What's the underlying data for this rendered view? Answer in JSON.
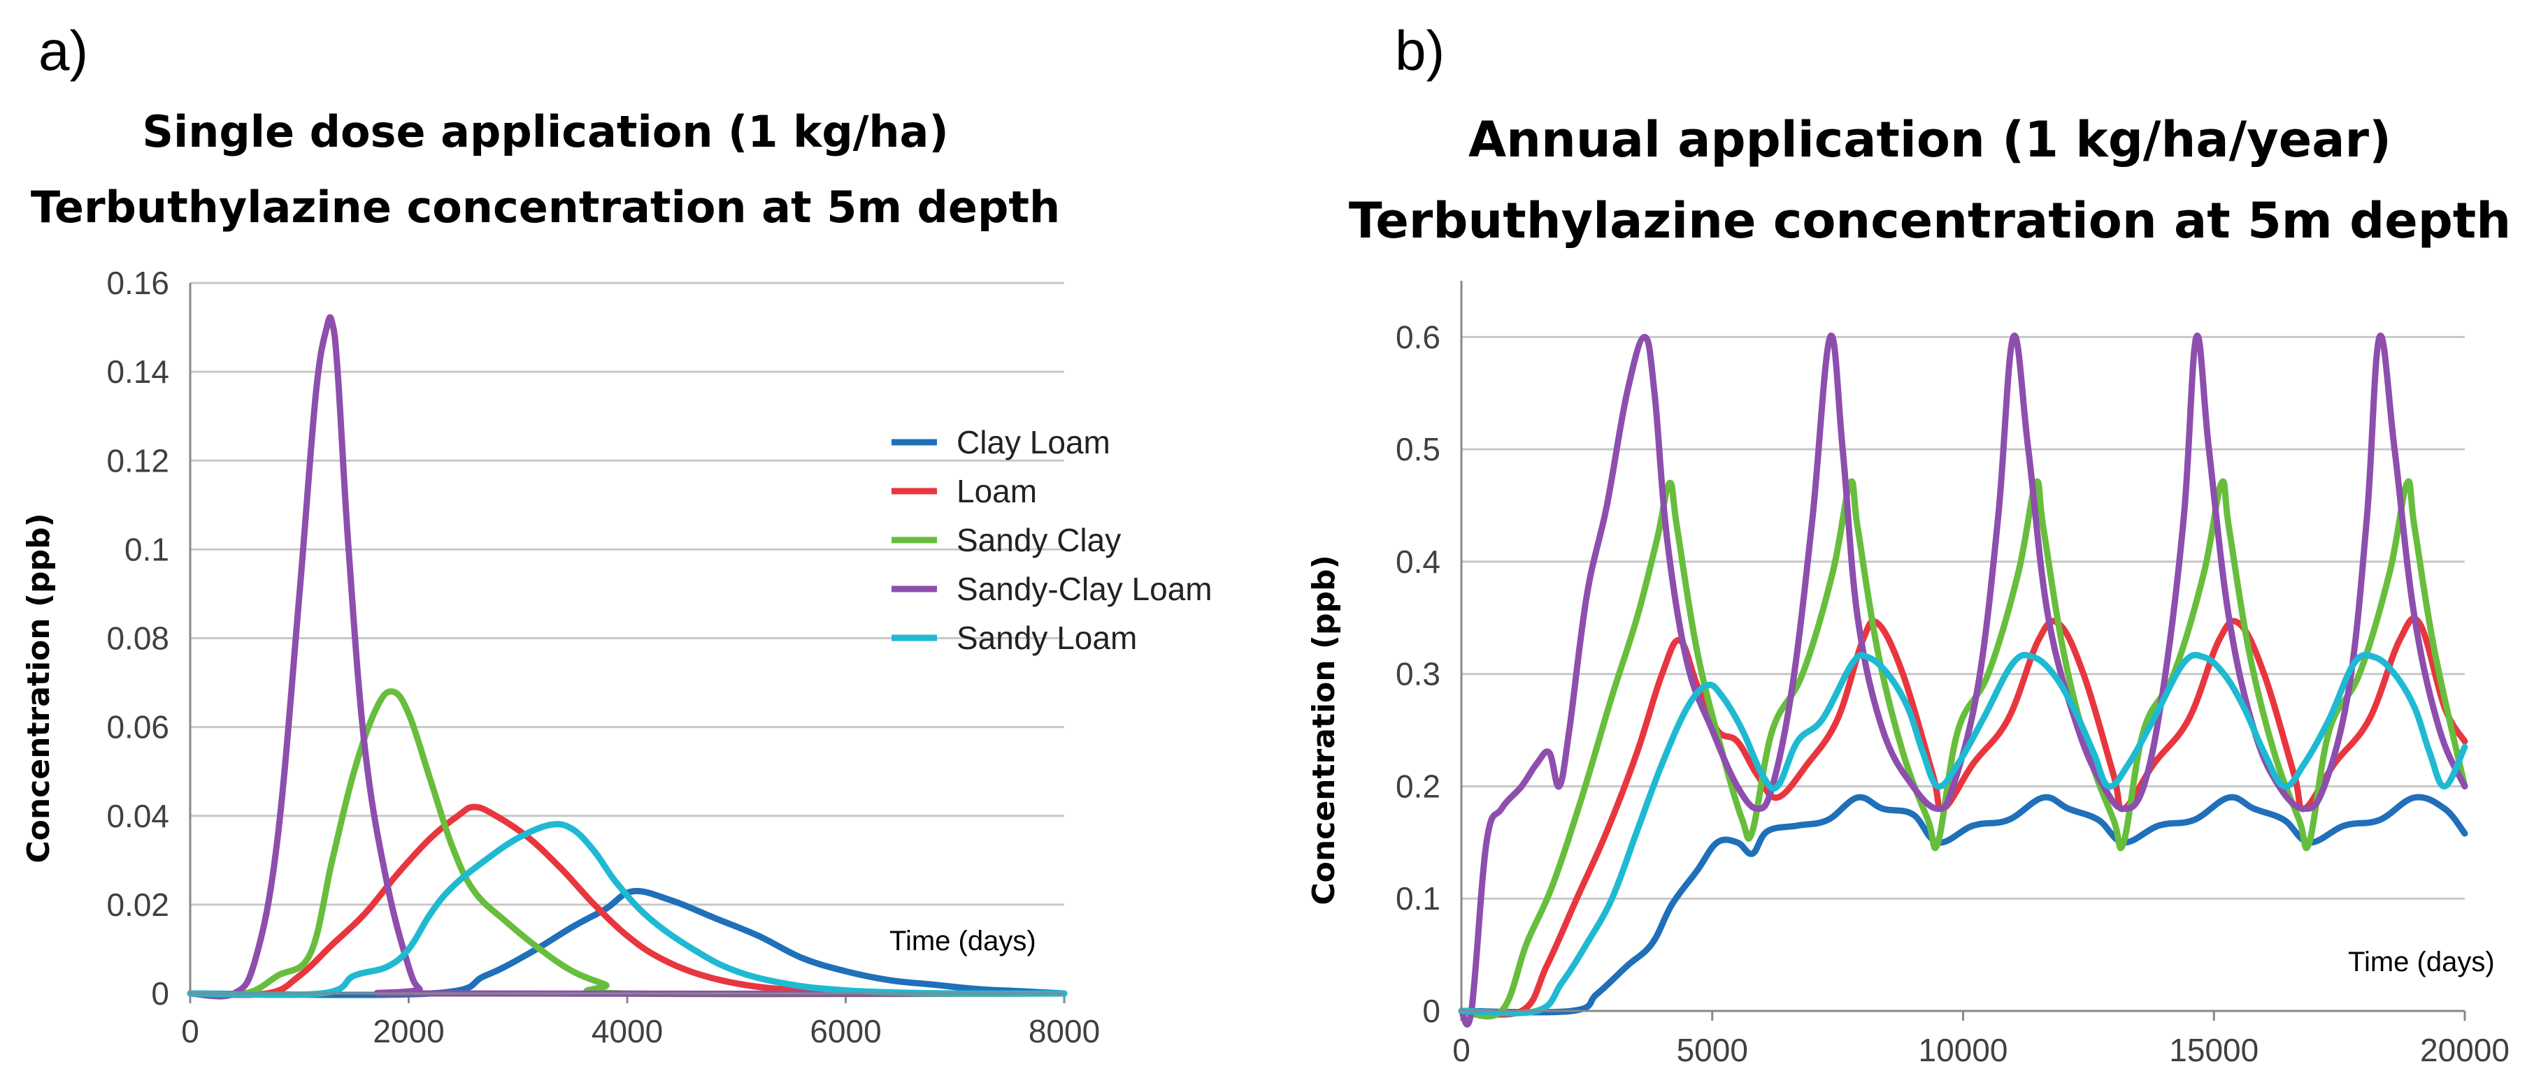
{
  "chart_data": [
    {
      "panel_label": "a)",
      "type": "line",
      "title": "Single dose application (1 kg/ha)",
      "subtitle": "Terbuthylazine concentration at 5m depth",
      "xlabel": "Time (days)",
      "ylabel": "Concentration (ppb)",
      "xlim": [
        0,
        8000
      ],
      "ylim": [
        0,
        0.16
      ],
      "xticks": [
        0,
        2000,
        4000,
        6000,
        8000
      ],
      "yticks": [
        0,
        0.02,
        0.04,
        0.06,
        0.08,
        0.1,
        0.12,
        0.14,
        0.16
      ],
      "ytick_labels": [
        "0",
        "0.02",
        "0.04",
        "0.06",
        "0.08",
        "0.1",
        "0.12",
        "0.14",
        "0.16"
      ],
      "grid": "horizontal",
      "legend": "right",
      "series": [
        {
          "name": "Clay Loam",
          "color": "#1f6fb9",
          "x": [
            0,
            2200,
            2700,
            3100,
            3500,
            3800,
            4050,
            4400,
            4800,
            5200,
            5600,
            6000,
            6400,
            6800,
            7200,
            7600,
            8000
          ],
          "y": [
            0,
            0,
            0.004,
            0.009,
            0.015,
            0.019,
            0.023,
            0.021,
            0.017,
            0.013,
            0.008,
            0.005,
            0.003,
            0.002,
            0.001,
            0.0005,
            0
          ]
        },
        {
          "name": "Loam",
          "color": "#e8363f",
          "x": [
            0,
            700,
            1000,
            1300,
            1600,
            1900,
            2200,
            2450,
            2600,
            2800,
            3100,
            3400,
            3700,
            4000,
            4300,
            4700,
            5200,
            5800,
            6400,
            7000,
            8000
          ],
          "y": [
            0,
            0,
            0.004,
            0.011,
            0.018,
            0.027,
            0.035,
            0.04,
            0.042,
            0.04,
            0.035,
            0.028,
            0.02,
            0.013,
            0.008,
            0.004,
            0.0015,
            0.0005,
            0.0001,
            0,
            0
          ]
        },
        {
          "name": "Sandy Clay",
          "color": "#67bd3c",
          "x": [
            0,
            500,
            800,
            1100,
            1300,
            1500,
            1700,
            1850,
            2000,
            2200,
            2400,
            2600,
            2900,
            3200,
            3500,
            3800,
            4000,
            8000
          ],
          "y": [
            0,
            0,
            0.004,
            0.009,
            0.03,
            0.05,
            0.064,
            0.068,
            0.063,
            0.048,
            0.033,
            0.023,
            0.016,
            0.01,
            0.005,
            0.002,
            0,
            0
          ]
        },
        {
          "name": "Sandy-Clay Loam",
          "color": "#8d4ead",
          "x": [
            0,
            400,
            600,
            800,
            1000,
            1150,
            1250,
            1300,
            1350,
            1450,
            1600,
            1800,
            2000,
            2100,
            2200,
            8000
          ],
          "y": [
            0,
            0,
            0.008,
            0.035,
            0.09,
            0.135,
            0.15,
            0.151,
            0.14,
            0.1,
            0.055,
            0.025,
            0.006,
            0.001,
            0,
            0
          ]
        },
        {
          "name": "Sandy Loam",
          "color": "#1fb9d2",
          "x": [
            0,
            1200,
            1500,
            1800,
            2000,
            2200,
            2400,
            2700,
            3000,
            3300,
            3500,
            3700,
            3900,
            4200,
            4600,
            5000,
            5500,
            6000,
            6500,
            7000,
            8000
          ],
          "y": [
            0,
            0,
            0.004,
            0.006,
            0.01,
            0.018,
            0.024,
            0.03,
            0.035,
            0.038,
            0.037,
            0.032,
            0.025,
            0.017,
            0.01,
            0.005,
            0.002,
            0.0007,
            0.0002,
            0,
            0
          ]
        }
      ]
    },
    {
      "panel_label": "b)",
      "type": "line",
      "title": "Annual application (1 kg/ha/year)",
      "subtitle": "Terbuthylazine concentration at 5m depth",
      "xlabel": "Time (days)",
      "ylabel": "Concentration (ppb)",
      "xlim": [
        0,
        20000
      ],
      "ylim": [
        0,
        0.65
      ],
      "xticks": [
        0,
        5000,
        10000,
        15000,
        20000
      ],
      "yticks": [
        0,
        0.1,
        0.2,
        0.3,
        0.4,
        0.5,
        0.6
      ],
      "ytick_labels": [
        "0",
        "0.1",
        "0.2",
        "0.3",
        "0.4",
        "0.5",
        "0.6"
      ],
      "grid": "horizontal",
      "series": [
        {
          "name": "Clay Loam",
          "color": "#1f6fb9",
          "x": [
            0,
            2200,
            2700,
            3300,
            3800,
            4200,
            4700,
            5100,
            5500,
            5800,
            6100,
            6700,
            7300,
            7900,
            8400,
            9000,
            9500,
            10200,
            10900,
            11600,
            12100,
            12700,
            13200,
            13900,
            14600,
            15300,
            15800,
            16400,
            16900,
            17600,
            18300,
            19000,
            19600,
            20000
          ],
          "y": [
            0,
            0,
            0.015,
            0.04,
            0.06,
            0.095,
            0.125,
            0.15,
            0.15,
            0.14,
            0.16,
            0.165,
            0.17,
            0.19,
            0.18,
            0.175,
            0.15,
            0.165,
            0.17,
            0.19,
            0.18,
            0.17,
            0.15,
            0.165,
            0.17,
            0.19,
            0.18,
            0.17,
            0.15,
            0.165,
            0.17,
            0.19,
            0.18,
            0.158
          ]
        },
        {
          "name": "Loam",
          "color": "#e8363f",
          "x": [
            0,
            1200,
            1700,
            2300,
            2900,
            3500,
            4000,
            4350,
            4700,
            5100,
            5500,
            5900,
            6300,
            6900,
            7500,
            8000,
            8300,
            8800,
            9400,
            9600,
            10200,
            10900,
            11500,
            11900,
            12400,
            13000,
            13200,
            13800,
            14500,
            15100,
            15500,
            16000,
            16600,
            16800,
            17400,
            18100,
            18700,
            19100,
            19600,
            20000
          ],
          "y": [
            0,
            0,
            0.04,
            0.1,
            0.16,
            0.23,
            0.3,
            0.33,
            0.29,
            0.25,
            0.24,
            0.21,
            0.19,
            0.22,
            0.26,
            0.33,
            0.345,
            0.3,
            0.21,
            0.18,
            0.22,
            0.26,
            0.33,
            0.345,
            0.3,
            0.21,
            0.18,
            0.22,
            0.26,
            0.33,
            0.345,
            0.3,
            0.21,
            0.18,
            0.22,
            0.26,
            0.33,
            0.345,
            0.27,
            0.24
          ]
        },
        {
          "name": "Sandy Clay",
          "color": "#67bd3c",
          "x": [
            0,
            800,
            1300,
            1800,
            2400,
            3000,
            3500,
            3900,
            4150,
            4300,
            4700,
            5200,
            5600,
            5800,
            6200,
            6800,
            7400,
            7750,
            7900,
            8300,
            8800,
            9300,
            9500,
            9900,
            10500,
            11100,
            11450,
            11600,
            12000,
            12500,
            13000,
            13200,
            13600,
            14200,
            14800,
            15150,
            15300,
            15700,
            16200,
            16700,
            16900,
            17300,
            17900,
            18500,
            18850,
            19000,
            19400,
            20000
          ],
          "y": [
            0,
            0,
            0.06,
            0.11,
            0.19,
            0.28,
            0.35,
            0.42,
            0.47,
            0.43,
            0.32,
            0.23,
            0.17,
            0.16,
            0.25,
            0.3,
            0.39,
            0.47,
            0.43,
            0.32,
            0.23,
            0.17,
            0.15,
            0.25,
            0.3,
            0.39,
            0.47,
            0.43,
            0.32,
            0.23,
            0.17,
            0.15,
            0.25,
            0.3,
            0.39,
            0.47,
            0.43,
            0.32,
            0.23,
            0.17,
            0.15,
            0.25,
            0.3,
            0.39,
            0.47,
            0.43,
            0.32,
            0.2
          ]
        },
        {
          "name": "Sandy-Clay Loam",
          "color": "#8d4ead",
          "x": [
            0,
            200,
            500,
            800,
            1200,
            1500,
            1750,
            1950,
            2150,
            2500,
            2900,
            3300,
            3650,
            3850,
            4100,
            4500,
            5000,
            5500,
            5900,
            6200,
            6600,
            7000,
            7350,
            7600,
            7900,
            8400,
            9000,
            9500,
            9800,
            10300,
            10700,
            11000,
            11300,
            11700,
            12300,
            12800,
            13200,
            13600,
            14000,
            14400,
            14650,
            14900,
            15300,
            15800,
            16300,
            16800,
            17200,
            17700,
            18050,
            18300,
            18600,
            19000,
            19500,
            20000
          ],
          "y": [
            0,
            0,
            0.15,
            0.18,
            0.2,
            0.22,
            0.23,
            0.2,
            0.25,
            0.37,
            0.45,
            0.55,
            0.6,
            0.55,
            0.42,
            0.31,
            0.25,
            0.2,
            0.18,
            0.2,
            0.29,
            0.44,
            0.6,
            0.5,
            0.35,
            0.25,
            0.2,
            0.18,
            0.2,
            0.29,
            0.44,
            0.6,
            0.5,
            0.35,
            0.25,
            0.2,
            0.18,
            0.2,
            0.29,
            0.44,
            0.6,
            0.5,
            0.35,
            0.25,
            0.2,
            0.18,
            0.2,
            0.29,
            0.44,
            0.6,
            0.5,
            0.35,
            0.25,
            0.2
          ]
        },
        {
          "name": "Sandy Loam",
          "color": "#1fb9d2",
          "x": [
            0,
            1500,
            2000,
            2500,
            3000,
            3500,
            4000,
            4500,
            4900,
            5200,
            5600,
            6000,
            6300,
            6700,
            7200,
            7800,
            8100,
            8500,
            8900,
            9200,
            9500,
            9900,
            10400,
            11000,
            11400,
            11800,
            12200,
            12600,
            12900,
            13300,
            13800,
            14400,
            14800,
            15200,
            15600,
            16000,
            16400,
            16800,
            17300,
            17800,
            18200,
            18600,
            19000,
            19300,
            19600,
            20000
          ],
          "y": [
            0,
            0,
            0.025,
            0.06,
            0.1,
            0.16,
            0.22,
            0.27,
            0.29,
            0.28,
            0.25,
            0.21,
            0.2,
            0.24,
            0.26,
            0.31,
            0.315,
            0.3,
            0.27,
            0.23,
            0.2,
            0.22,
            0.26,
            0.31,
            0.315,
            0.3,
            0.27,
            0.23,
            0.2,
            0.22,
            0.26,
            0.31,
            0.315,
            0.3,
            0.27,
            0.23,
            0.2,
            0.22,
            0.26,
            0.31,
            0.315,
            0.3,
            0.27,
            0.23,
            0.2,
            0.235
          ]
        }
      ]
    }
  ]
}
